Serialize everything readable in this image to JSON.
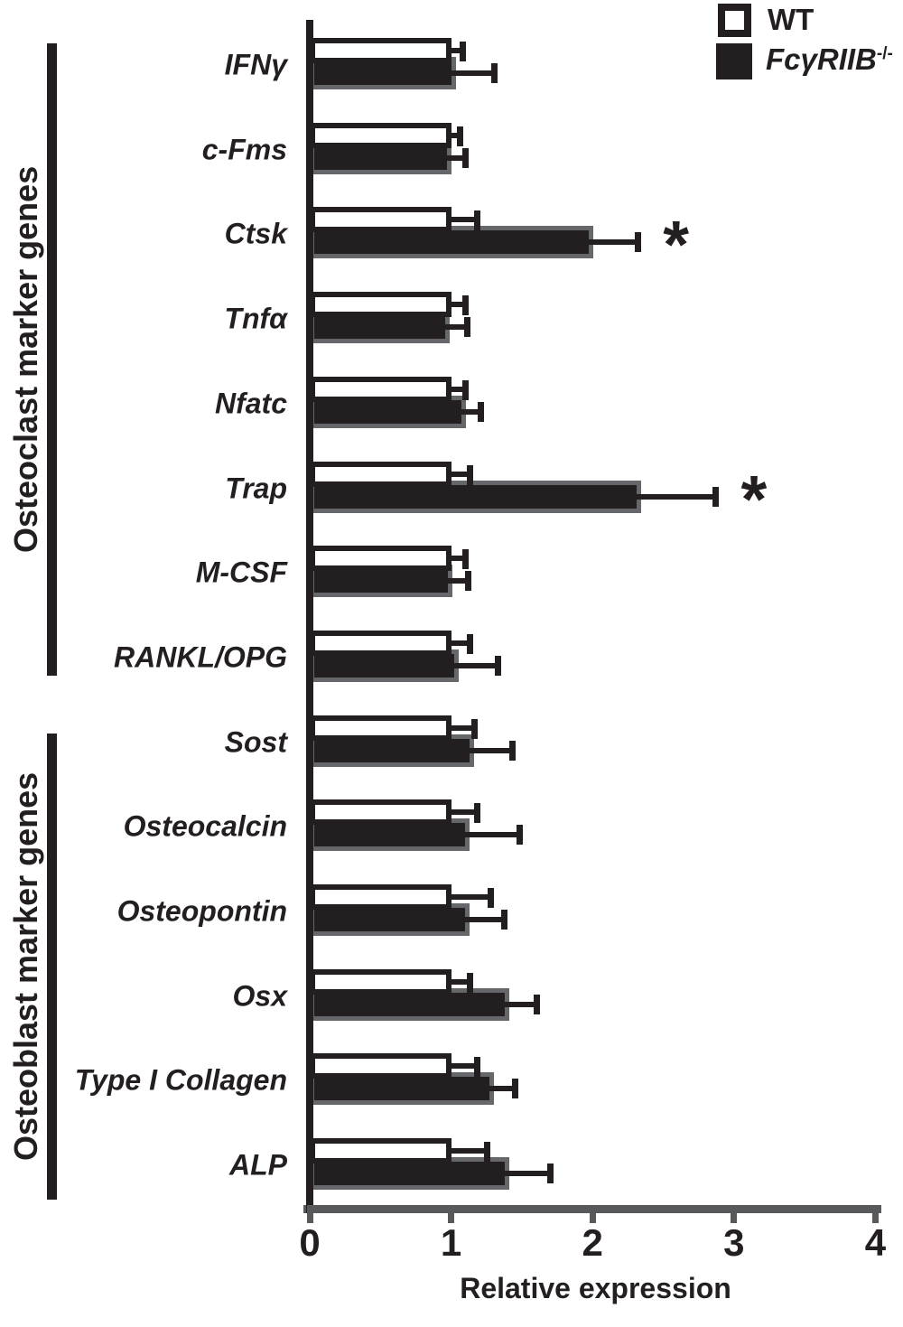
{
  "legend": {
    "wt_label": "WT",
    "ko_label_main": "FcγRIIB",
    "ko_label_sup": "-/-"
  },
  "groups": [
    {
      "label": "Osteoclast marker genes",
      "genes": [
        "IFNγ",
        "c-Fms",
        "Ctsk",
        "Tnfα",
        "Nfatc",
        "Trap",
        "M-CSF",
        "RANKL/OPG"
      ]
    },
    {
      "label": "Osteoblast marker genes",
      "genes": [
        "Sost",
        "Osteocalcin",
        "Osteopontin",
        "Osx",
        "Type I Collagen",
        "ALP"
      ]
    }
  ],
  "chart_data": {
    "type": "bar",
    "orientation": "horizontal",
    "title": "",
    "xlabel": "Relative expression",
    "ylabel": "",
    "xlim": [
      0,
      4
    ],
    "x_ticks": [
      0,
      1,
      2,
      3,
      4
    ],
    "grid": false,
    "legend_position": "top-right",
    "categories": [
      "IFNγ",
      "c-Fms",
      "Ctsk",
      "Tnfα",
      "Nfatc",
      "Trap",
      "M-CSF",
      "RANKL/OPG",
      "Sost",
      "Osteocalcin",
      "Osteopontin",
      "Osx",
      "Type I Collagen",
      "ALP"
    ],
    "series": [
      {
        "name": "WT",
        "fill": "#ffffff",
        "values": [
          1.0,
          1.0,
          1.0,
          1.0,
          1.0,
          1.0,
          1.0,
          1.0,
          1.0,
          1.0,
          1.0,
          1.0,
          1.0,
          1.0
        ],
        "error_to": [
          1.08,
          1.06,
          1.18,
          1.1,
          1.1,
          1.13,
          1.1,
          1.13,
          1.16,
          1.18,
          1.28,
          1.13,
          1.18,
          1.25
        ]
      },
      {
        "name": "FcγRIIB-/-",
        "fill": "#231f20",
        "values": [
          1.0,
          0.97,
          1.97,
          0.96,
          1.07,
          2.31,
          0.98,
          1.02,
          1.13,
          1.1,
          1.1,
          1.38,
          1.27,
          1.38
        ],
        "error_to": [
          1.3,
          1.1,
          2.32,
          1.11,
          1.21,
          2.87,
          1.12,
          1.33,
          1.43,
          1.48,
          1.37,
          1.6,
          1.45,
          1.7
        ]
      }
    ],
    "significant_categories": [
      "Ctsk",
      "Trap"
    ],
    "sig_marker": "*"
  },
  "colors": {
    "bar_black": "#231f20",
    "bar_outline_gray": "#66676a",
    "axis_gray": "#58595b",
    "text": "#231f20",
    "background": "#ffffff"
  }
}
